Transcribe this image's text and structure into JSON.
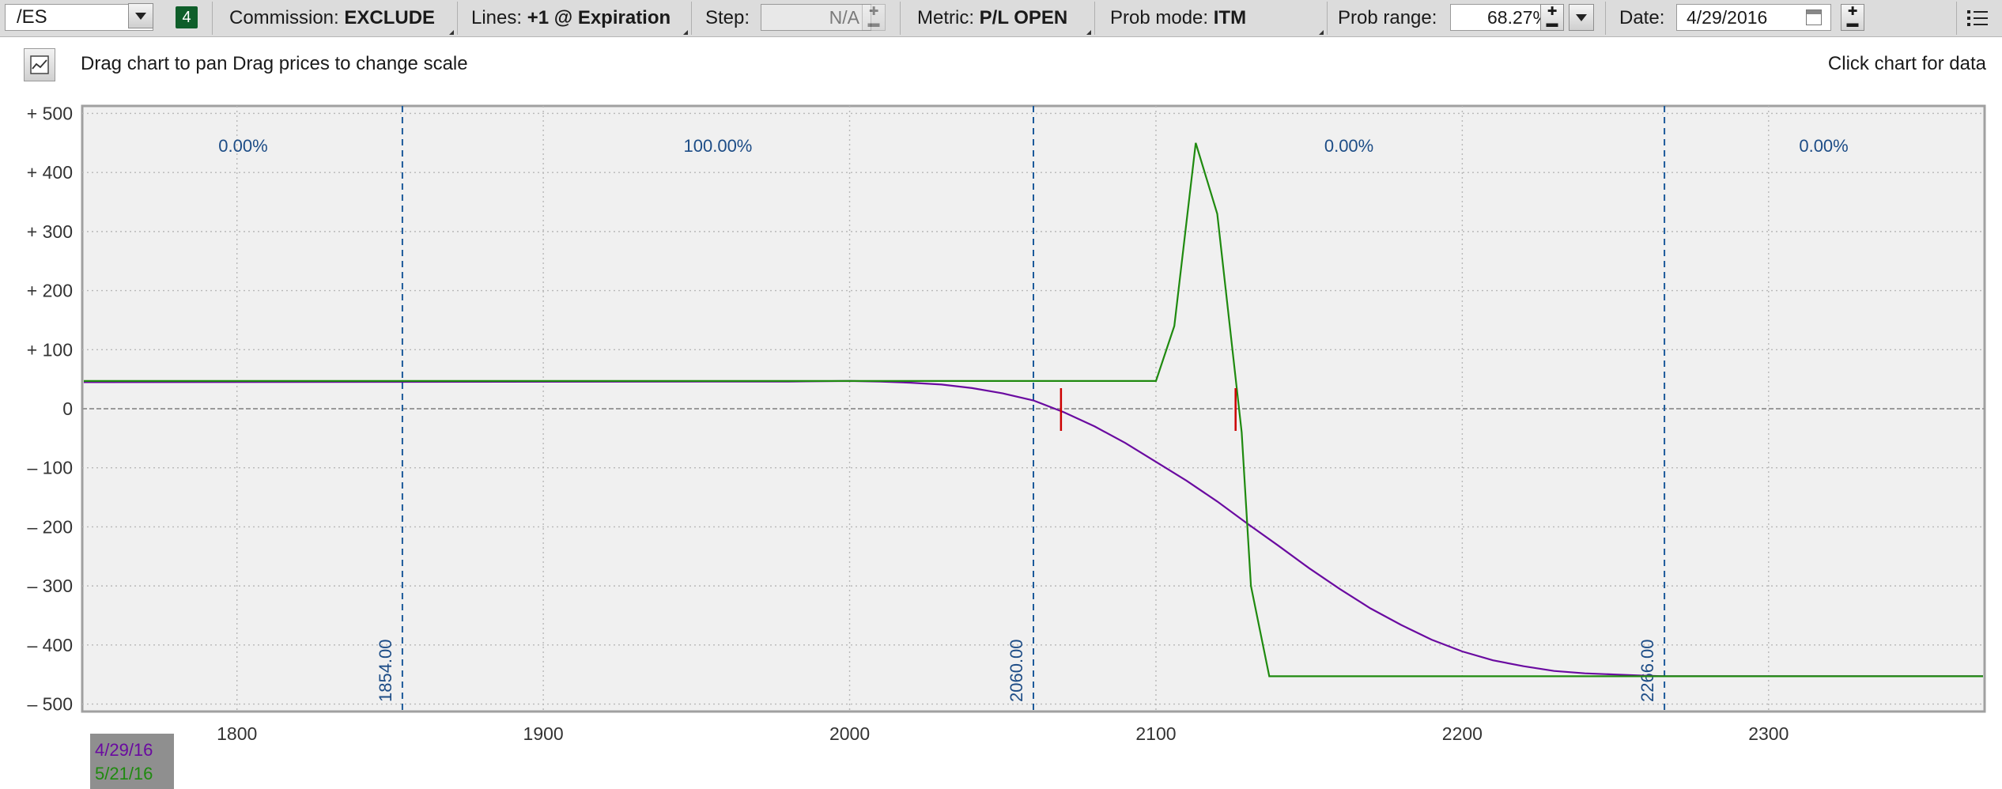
{
  "toolbar": {
    "symbol": "/ES",
    "link_badge": "4",
    "commission_label": "Commission:",
    "commission_value": "EXCLUDE",
    "lines_label": "Lines:",
    "lines_value": "+1 @ Expiration",
    "step_label": "Step:",
    "step_value": "N/A",
    "metric_label": "Metric:",
    "metric_value": "P/L OPEN",
    "prob_mode_label": "Prob mode:",
    "prob_mode_value": "ITM",
    "prob_range_label": "Prob range:",
    "prob_range_value": "68.27%",
    "date_label": "Date:",
    "date_value": "4/29/2016",
    "icons": [
      "chevron-down-icon",
      "calendar-icon",
      "menu-icon",
      "chart-icon"
    ]
  },
  "subbar": {
    "hint_text": "Drag chart to pan Drag prices to change scale",
    "data_hint": "Click chart for data"
  },
  "chart_data": {
    "type": "line",
    "xlim": [
      1750,
      2370
    ],
    "ylim": [
      -510,
      510
    ],
    "x_ticks": [
      1800,
      1900,
      2000,
      2100,
      2200,
      2300
    ],
    "y_ticks": [
      {
        "value": 500,
        "label": "+ 500"
      },
      {
        "value": 400,
        "label": "+ 400"
      },
      {
        "value": 300,
        "label": "+ 300"
      },
      {
        "value": 200,
        "label": "+ 200"
      },
      {
        "value": 100,
        "label": "+ 100"
      },
      {
        "value": 0,
        "label": "0"
      },
      {
        "value": -100,
        "label": "– 100"
      },
      {
        "value": -200,
        "label": "– 200"
      },
      {
        "value": -300,
        "label": "– 300"
      },
      {
        "value": -400,
        "label": "– 400"
      },
      {
        "value": -500,
        "label": "– 500"
      }
    ],
    "grid": true,
    "prob_lines": [
      {
        "x": 1854,
        "label": "1854.00"
      },
      {
        "x": 2060,
        "label": "2060.00"
      },
      {
        "x": 2266,
        "label": "2266.00"
      }
    ],
    "zone_probabilities": [
      {
        "x": 1802,
        "label": "0.00%"
      },
      {
        "x": 1957,
        "label": "100.00%"
      },
      {
        "x": 2163,
        "label": "0.00%"
      },
      {
        "x": 2318,
        "label": "0.00%"
      }
    ],
    "series": [
      {
        "name": "4/29/16",
        "color": "#6a0aa0",
        "points": [
          [
            1750,
            45
          ],
          [
            1980,
            46
          ],
          [
            2000,
            47
          ],
          [
            2010,
            46
          ],
          [
            2020,
            44
          ],
          [
            2030,
            41
          ],
          [
            2040,
            35
          ],
          [
            2050,
            26
          ],
          [
            2060,
            14
          ],
          [
            2070,
            -6
          ],
          [
            2080,
            -30
          ],
          [
            2090,
            -58
          ],
          [
            2100,
            -90
          ],
          [
            2110,
            -122
          ],
          [
            2120,
            -157
          ],
          [
            2130,
            -195
          ],
          [
            2140,
            -232
          ],
          [
            2150,
            -270
          ],
          [
            2160,
            -305
          ],
          [
            2170,
            -338
          ],
          [
            2180,
            -366
          ],
          [
            2190,
            -391
          ],
          [
            2200,
            -411
          ],
          [
            2210,
            -426
          ],
          [
            2220,
            -436
          ],
          [
            2230,
            -444
          ],
          [
            2240,
            -448
          ],
          [
            2250,
            -450
          ],
          [
            2260,
            -452
          ],
          [
            2266,
            -453
          ],
          [
            2280,
            -453
          ],
          [
            2370,
            -453
          ]
        ]
      },
      {
        "name": "5/21/16",
        "color": "#1f8a0f",
        "points": [
          [
            1750,
            47
          ],
          [
            2100,
            47
          ],
          [
            2106,
            140
          ],
          [
            2113,
            450
          ],
          [
            2120,
            330
          ],
          [
            2128,
            -40
          ],
          [
            2131,
            -300
          ],
          [
            2137,
            -453
          ],
          [
            2370,
            -453
          ]
        ]
      }
    ],
    "markers": [
      {
        "x": 2069,
        "y": 0,
        "color": "#cc0000"
      },
      {
        "x": 2126,
        "y": 0,
        "color": "#cc0000"
      }
    ],
    "legend": "bottom-left"
  }
}
